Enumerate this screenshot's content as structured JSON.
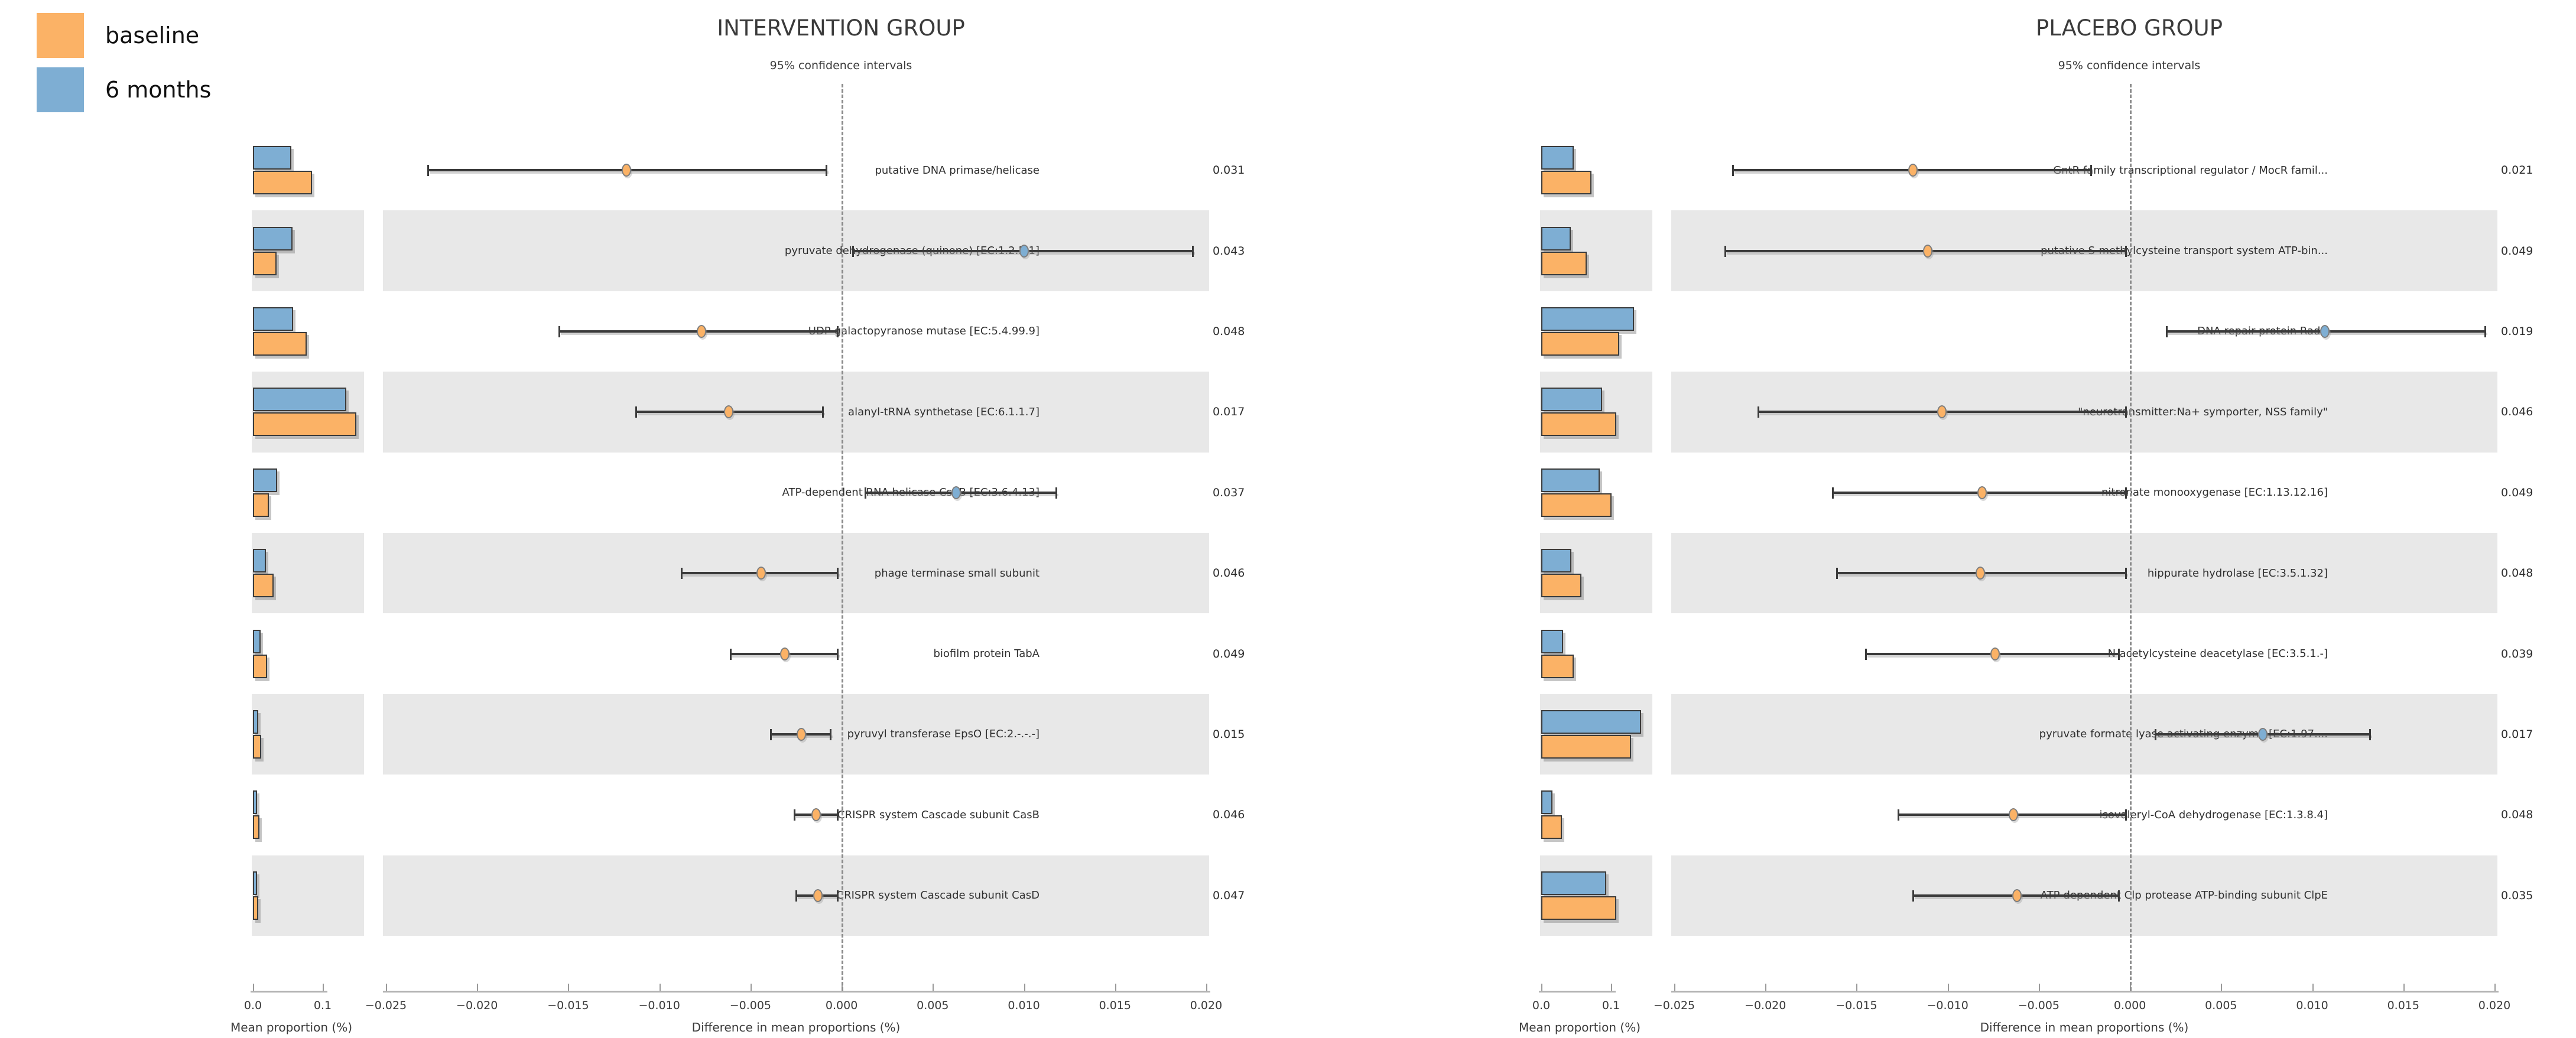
{
  "legend": {
    "items": [
      {
        "label": "baseline",
        "color": "#FBB266"
      },
      {
        "label": "6 months",
        "color": "#7EAED3"
      }
    ]
  },
  "colors": {
    "baseline": "#FBB266",
    "six_months": "#7EAED3",
    "stripe": "#e8e8e8",
    "error_bar": "#3a3a3a",
    "dashed_zero_line": "#8c8c8c"
  },
  "chart_data": [
    {
      "type": "bar",
      "title": "INTERVENTION GROUP",
      "ci_header": "95% confidence intervals",
      "bar_axis": {
        "label": "Mean proportion (%)",
        "ticks": [
          {
            "v": 0.0,
            "label": "0.0"
          },
          {
            "v": 0.1,
            "label": "0.1"
          }
        ]
      },
      "diff_axis": {
        "label": "Difference in mean proportions (%)",
        "min": -0.025,
        "max": 0.02,
        "ticks": [
          {
            "v": -0.025,
            "label": "−0.025"
          },
          {
            "v": -0.02,
            "label": "−0.020"
          },
          {
            "v": -0.015,
            "label": "−0.015"
          },
          {
            "v": -0.01,
            "label": "−0.010"
          },
          {
            "v": -0.005,
            "label": "−0.005"
          },
          {
            "v": 0.0,
            "label": "0.000"
          },
          {
            "v": 0.005,
            "label": "0.005"
          },
          {
            "v": 0.01,
            "label": "0.010"
          },
          {
            "v": 0.015,
            "label": "0.015"
          },
          {
            "v": 0.02,
            "label": "0.020"
          }
        ]
      },
      "series_names": [
        "baseline",
        "6 months"
      ],
      "features": [
        {
          "label": "putative DNA primase/helicase",
          "baseline": 0.085,
          "six_months": 0.055,
          "diff": -0.0118,
          "ci_low": -0.0227,
          "ci_high": -0.0008,
          "diff_group": "six_months_lower_baseline",
          "dot": "baseline",
          "p": "0.031"
        },
        {
          "label": "pyruvate dehydrogenase (quinone) [EC:1.2.5.1]",
          "baseline": 0.034,
          "six_months": 0.057,
          "diff": 0.01,
          "ci_low": 0.0006,
          "ci_high": 0.0193,
          "diff_group": "six_months_higher",
          "dot": "six_months",
          "p": "0.043"
        },
        {
          "label": "UDP-galactopyranose mutase [EC:5.4.99.9]",
          "baseline": 0.077,
          "six_months": 0.058,
          "diff": -0.0077,
          "ci_low": -0.0155,
          "ci_high": -0.0002,
          "diff_group": "six_months_lower_baseline",
          "dot": "baseline",
          "p": "0.048"
        },
        {
          "label": "alanyl-tRNA synthetase [EC:6.1.1.7]",
          "baseline": 0.148,
          "six_months": 0.134,
          "diff": -0.0062,
          "ci_low": -0.0113,
          "ci_high": -0.001,
          "diff_group": "six_months_lower_baseline",
          "dot": "baseline",
          "p": "0.017"
        },
        {
          "label": "ATP-dependent RNA helicase CshB [EC:3.6.4.13]",
          "baseline": 0.023,
          "six_months": 0.035,
          "diff": 0.0063,
          "ci_low": 0.0013,
          "ci_high": 0.0118,
          "diff_group": "six_months_higher",
          "dot": "six_months",
          "p": "0.037"
        },
        {
          "label": "phage terminase small subunit",
          "baseline": 0.03,
          "six_months": 0.019,
          "diff": -0.0044,
          "ci_low": -0.0088,
          "ci_high": -0.0002,
          "diff_group": "six_months_lower_baseline",
          "dot": "baseline",
          "p": "0.046"
        },
        {
          "label": "biofilm protein TabA",
          "baseline": 0.02,
          "six_months": 0.011,
          "diff": -0.0031,
          "ci_low": -0.0061,
          "ci_high": -0.0002,
          "diff_group": "six_months_lower_baseline",
          "dot": "baseline",
          "p": "0.049"
        },
        {
          "label": "pyruvyl transferase EpsO [EC:2.-.-.-]",
          "baseline": 0.012,
          "six_months": 0.008,
          "diff": -0.0022,
          "ci_low": -0.0039,
          "ci_high": -0.0006,
          "diff_group": "six_months_lower_baseline",
          "dot": "baseline",
          "p": "0.015"
        },
        {
          "label": "CRISPR system Cascade subunit CasB",
          "baseline": 0.009,
          "six_months": 0.006,
          "diff": -0.0014,
          "ci_low": -0.0026,
          "ci_high": -0.0002,
          "diff_group": "six_months_lower_baseline",
          "dot": "baseline",
          "p": "0.046"
        },
        {
          "label": "CRISPR system Cascade subunit CasD",
          "baseline": 0.008,
          "six_months": 0.006,
          "diff": -0.0013,
          "ci_low": -0.0025,
          "ci_high": -0.0002,
          "diff_group": "six_months_lower_baseline",
          "dot": "baseline",
          "p": "0.047"
        }
      ]
    },
    {
      "type": "bar",
      "title": "PLACEBO GROUP",
      "ci_header": "95% confidence intervals",
      "bar_axis": {
        "label": "Mean proportion (%)",
        "ticks": [
          {
            "v": 0.0,
            "label": "0.0"
          },
          {
            "v": 0.1,
            "label": "0.1"
          }
        ]
      },
      "diff_axis": {
        "label": "Difference in mean proportions (%)",
        "min": -0.025,
        "max": 0.02,
        "ticks": [
          {
            "v": -0.025,
            "label": "−0.025"
          },
          {
            "v": -0.02,
            "label": "−0.020"
          },
          {
            "v": -0.015,
            "label": "−0.015"
          },
          {
            "v": -0.01,
            "label": "−0.010"
          },
          {
            "v": -0.005,
            "label": "−0.005"
          },
          {
            "v": 0.0,
            "label": "0.000"
          },
          {
            "v": 0.005,
            "label": "0.005"
          },
          {
            "v": 0.01,
            "label": "0.010"
          },
          {
            "v": 0.015,
            "label": "0.015"
          },
          {
            "v": 0.02,
            "label": "0.020"
          }
        ]
      },
      "series_names": [
        "baseline",
        "6 months"
      ],
      "features": [
        {
          "label": "GntR family transcriptional regulator / MocR famil...",
          "baseline": 0.072,
          "six_months": 0.047,
          "diff": -0.0119,
          "ci_low": -0.0218,
          "ci_high": -0.0021,
          "diff_group": "six_months_lower_baseline",
          "dot": "baseline",
          "p": "0.021"
        },
        {
          "label": "putative S-methylcysteine transport system ATP-bin...",
          "baseline": 0.065,
          "six_months": 0.042,
          "diff": -0.0111,
          "ci_low": -0.0222,
          "ci_high": -0.0002,
          "diff_group": "six_months_lower_baseline",
          "dot": "baseline",
          "p": "0.049"
        },
        {
          "label": "DNA repair protein RadC",
          "baseline": 0.112,
          "six_months": 0.133,
          "diff": 0.0107,
          "ci_low": 0.002,
          "ci_high": 0.0195,
          "diff_group": "six_months_higher",
          "dot": "six_months",
          "p": "0.019"
        },
        {
          "label": "\"neurotransmitter:Na+ symporter, NSS family\"",
          "baseline": 0.108,
          "six_months": 0.087,
          "diff": -0.0103,
          "ci_low": -0.0204,
          "ci_high": -0.0002,
          "diff_group": "six_months_lower_baseline",
          "dot": "baseline",
          "p": "0.046"
        },
        {
          "label": "nitronate monooxygenase [EC:1.13.12.16]",
          "baseline": 0.101,
          "six_months": 0.084,
          "diff": -0.0081,
          "ci_low": -0.0163,
          "ci_high": -0.0002,
          "diff_group": "six_months_lower_baseline",
          "dot": "baseline",
          "p": "0.049"
        },
        {
          "label": "hippurate hydrolase [EC:3.5.1.32]",
          "baseline": 0.058,
          "six_months": 0.043,
          "diff": -0.0082,
          "ci_low": -0.0161,
          "ci_high": -0.0002,
          "diff_group": "six_months_lower_baseline",
          "dot": "baseline",
          "p": "0.048"
        },
        {
          "label": "N-acetylcysteine deacetylase [EC:3.5.1.-]",
          "baseline": 0.047,
          "six_months": 0.031,
          "diff": -0.0074,
          "ci_low": -0.0145,
          "ci_high": -0.0006,
          "diff_group": "six_months_lower_baseline",
          "dot": "baseline",
          "p": "0.039"
        },
        {
          "label": "pyruvate formate lyase activating enzyme [EC:1.97....",
          "baseline": 0.129,
          "six_months": 0.143,
          "diff": 0.0073,
          "ci_low": 0.0014,
          "ci_high": 0.0132,
          "diff_group": "six_months_higher",
          "dot": "six_months",
          "p": "0.017"
        },
        {
          "label": "isovaleryl-CoA dehydrogenase [EC:1.3.8.4]",
          "baseline": 0.03,
          "six_months": 0.016,
          "diff": -0.0064,
          "ci_low": -0.0127,
          "ci_high": -0.0002,
          "diff_group": "six_months_lower_baseline",
          "dot": "baseline",
          "p": "0.048"
        },
        {
          "label": "ATP-dependent Clp protease ATP-binding subunit ClpE",
          "baseline": 0.108,
          "six_months": 0.093,
          "diff": -0.0062,
          "ci_low": -0.0119,
          "ci_high": -0.0006,
          "diff_group": "six_months_lower_baseline",
          "dot": "baseline",
          "p": "0.035"
        }
      ]
    }
  ]
}
